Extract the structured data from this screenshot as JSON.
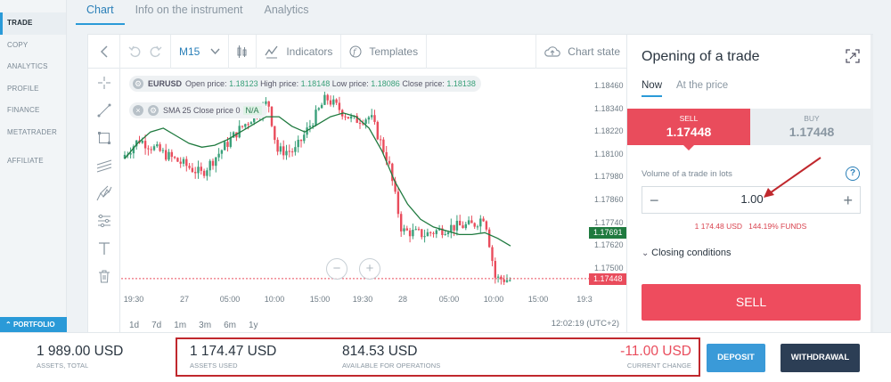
{
  "nav": {
    "items": [
      "TRADE",
      "COPY",
      "ANALYTICS",
      "PROFILE",
      "FINANCE",
      "METATRADER"
    ],
    "affiliate": "AFFILIATE",
    "portfolio": "PORTFOLIO"
  },
  "tabs": [
    "Chart",
    "Info on the instrument",
    "Analytics"
  ],
  "toolbar": {
    "timeframe": "M15",
    "indicators": "Indicators",
    "templates": "Templates",
    "chart_state": "Chart state"
  },
  "legend": {
    "symbol": "EURUSD",
    "open_label": "Open price:",
    "open": "1.18123",
    "high_label": "High price:",
    "high": "1.18148",
    "low_label": "Low price:",
    "low": "1.18086",
    "close_label": "Close price:",
    "close": "1.18138",
    "sma_label": "SMA 25 Close price 0",
    "sma_value": "N/A"
  },
  "chart_data": {
    "type": "candlestick",
    "symbol": "EURUSD",
    "y_ticks": [
      "1.18460",
      "1.18340",
      "1.18220",
      "1.18100",
      "1.17980",
      "1.17860",
      "1.17740",
      "1.17620",
      "1.17500"
    ],
    "x_ticks": [
      "19:30",
      "27",
      "05:00",
      "10:00",
      "15:00",
      "19:30",
      "28",
      "05:00",
      "10:00",
      "15:00",
      "19:3"
    ],
    "sma_tag": "1.17691",
    "price_tag": "1.17448",
    "sma_close_series": [
      1.1808,
      1.1816,
      1.1822,
      1.1824,
      1.182,
      1.1816,
      1.1814,
      1.1815,
      1.1818,
      1.1822,
      1.1826,
      1.183,
      1.183,
      1.1825,
      1.1822,
      1.1826,
      1.183,
      1.1832,
      1.183,
      1.1824,
      1.1812,
      1.1796,
      1.1784,
      1.1776,
      1.1772,
      1.177,
      1.1768,
      1.1768,
      1.1769,
      1.1766,
      1.1762
    ]
  },
  "periods": [
    "1d",
    "7d",
    "1m",
    "3m",
    "6m",
    "1y"
  ],
  "clock": "12:02:19 (UTC+2)",
  "trade": {
    "title": "Opening of a trade",
    "mode_now": "Now",
    "mode_price": "At the price",
    "sell_label": "SELL",
    "sell_price": "1.17448",
    "buy_label": "BUY",
    "buy_price": "1.17448",
    "volume_label": "Volume of a trade in lots",
    "volume": "1.00",
    "volume_info": "1 174.48 USD   144.19% FUNDS",
    "closing": "Closing conditions",
    "sell_button": "SELL"
  },
  "footer": {
    "assets_value": "1 989.00 USD",
    "assets_label": "ASSETS, TOTAL",
    "used_value": "1 174.47 USD",
    "used_label": "ASSETS USED",
    "avail_value": "814.53 USD",
    "avail_label": "AVAILABLE FOR OPERATIONS",
    "change_value": "-11.00 USD",
    "change_label": "CURRENT CHANGE",
    "deposit": "DEPOSIT",
    "withdrawal": "WITHDRAWAL"
  },
  "colors": {
    "accent": "#2a9ad8",
    "sell": "#ee4c5e",
    "buy_bg": "#e9edf0",
    "up_candle": "#3aa07a",
    "down_candle": "#e94c5c",
    "sma_line": "#1f7a3f",
    "highlight": "#c0282d"
  }
}
